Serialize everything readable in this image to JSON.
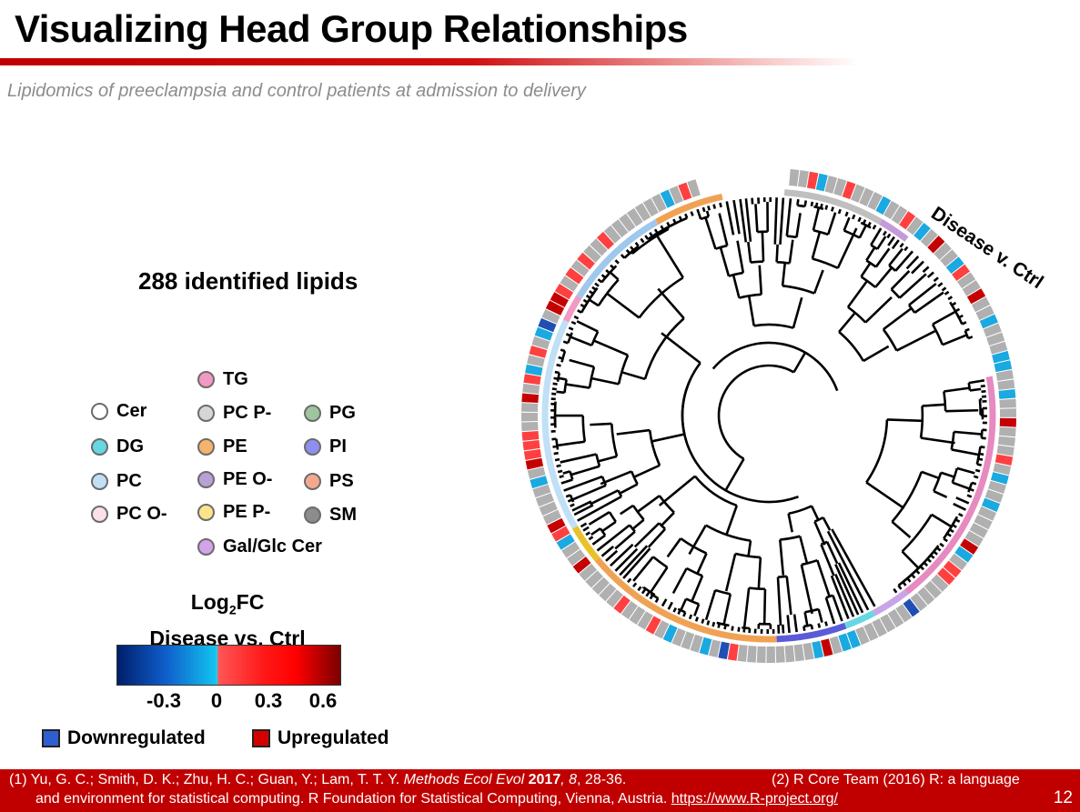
{
  "title": "Visualizing Head Group Relationships",
  "subtitle": "Lipidomics of preeclampsia and control patients at admission to delivery",
  "lipid_count": "288 identified lipids",
  "head_groups": [
    {
      "name": "TG",
      "color": "#f29ac3"
    },
    {
      "name": "Cer",
      "color": "#ffffff"
    },
    {
      "name": "PC P-",
      "color": "#d6d6d6"
    },
    {
      "name": "PG",
      "color": "#9fc59f"
    },
    {
      "name": "DG",
      "color": "#66d7e3"
    },
    {
      "name": "PE",
      "color": "#f6b36d"
    },
    {
      "name": "PI",
      "color": "#8f8ff0"
    },
    {
      "name": "PC",
      "color": "#bfe0f5"
    },
    {
      "name": "PE O-",
      "color": "#b9a0d6"
    },
    {
      "name": "PS",
      "color": "#f4a98e"
    },
    {
      "name": "PC O-",
      "color": "#fbe0e7"
    },
    {
      "name": "PE P-",
      "color": "#fbe48a"
    },
    {
      "name": "SM",
      "color": "#8c8c8c"
    },
    {
      "name": "Gal/Glc Cer",
      "color": "#d4a3ea"
    }
  ],
  "colorbar": {
    "title_main": "Log",
    "title_sub": "2",
    "title_suffix": "FC",
    "title_line2": "Disease vs. Ctrl",
    "ticks": [
      "-0.3",
      "0",
      "0.3",
      "0.6"
    ]
  },
  "regulation": {
    "down_label": "Downregulated",
    "down_color": "#2f5fce",
    "up_label": "Upregulated",
    "up_color": "#d40000"
  },
  "ring_label": "Disease v. Ctrl",
  "ring_colors": {
    "none": "#b0b0b0",
    "light_blue": "#1aa9e0",
    "dark_blue": "#1f4fb5",
    "light_red": "#ff4040",
    "dark_red": "#c40000"
  },
  "references": {
    "ref1_prefix": "(1) Yu, G. C.; Smith, D. K.; Zhu, H. C.; Guan, Y.; Lam, T. T. Y. ",
    "ref1_journal": "Methods Ecol Evol",
    "ref1_year": " 2017",
    "ref1_volume": ", 8",
    "ref1_pages": ", 28-36.",
    "ref2_start": "(2) R Core Team (2016) R: a language",
    "ref2_rest": "and environment for statistical computing. R Foundation for Statistical Computing, Vienna, Austria.",
    "ref2_url": "https://www.R-project.org/"
  },
  "page_number": "12"
}
